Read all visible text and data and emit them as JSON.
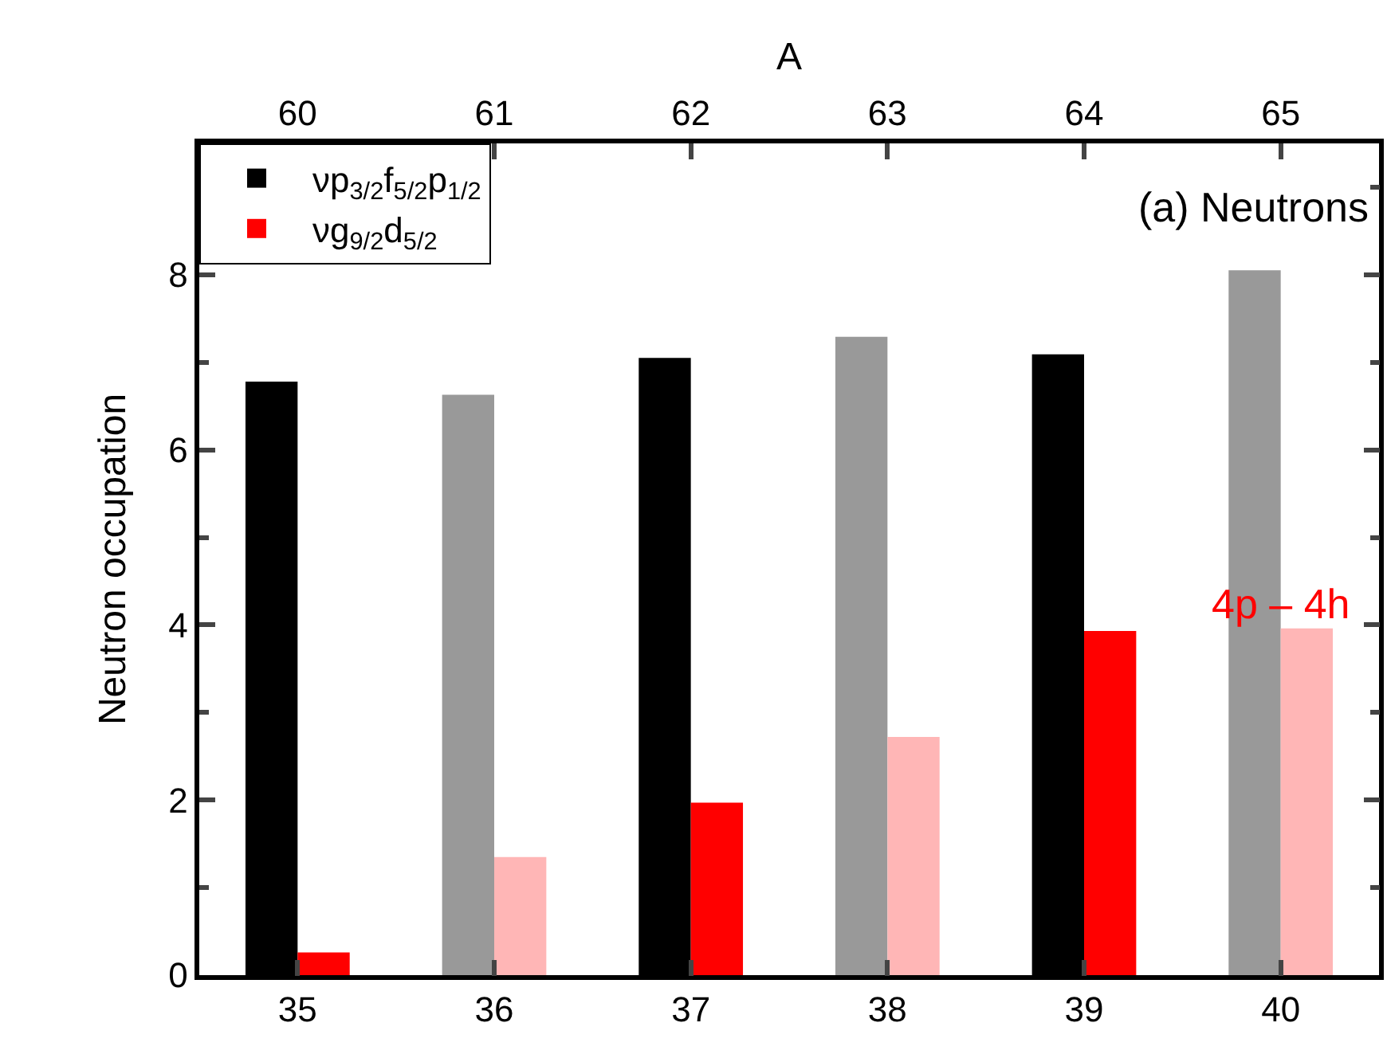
{
  "chart_data": {
    "type": "bar",
    "title": "(a) Neutrons",
    "xlabel": null,
    "x2label": "A",
    "ylabel": "Neutron occupation",
    "x": [
      35,
      36,
      37,
      38,
      39,
      40
    ],
    "xlim": [
      34.5,
      40.5
    ],
    "xticks": [
      35,
      36,
      37,
      38,
      39,
      40
    ],
    "x2lim": [
      59.5,
      65.5
    ],
    "x2ticks": [
      60,
      61,
      62,
      63,
      64,
      65
    ],
    "ylim": [
      0,
      9.5
    ],
    "yticks": [
      0,
      2,
      4,
      6,
      8
    ],
    "series": [
      {
        "name": "νp$_{3/2}$f$_{5/2}$p$_{1/2}$",
        "colors": [
          "#000000",
          "#999999",
          "#000000",
          "#999999",
          "#000000",
          "#999999"
        ],
        "values": [
          6.78,
          6.63,
          7.05,
          7.29,
          7.09,
          8.05
        ]
      },
      {
        "name": "νg$_{9/2}$d$_{5/2}$",
        "colors": [
          "#ff0000",
          "#ffb6b6",
          "#ff0000",
          "#ffb6b6",
          "#ff0000",
          "#ffb6b6"
        ],
        "values": [
          0.26,
          1.35,
          1.97,
          2.72,
          3.93,
          3.96
        ]
      }
    ],
    "annotations": [
      {
        "text": "4p – 4h",
        "x": 40,
        "y": 3.96
      }
    ],
    "grid": false,
    "legend": "top left"
  }
}
